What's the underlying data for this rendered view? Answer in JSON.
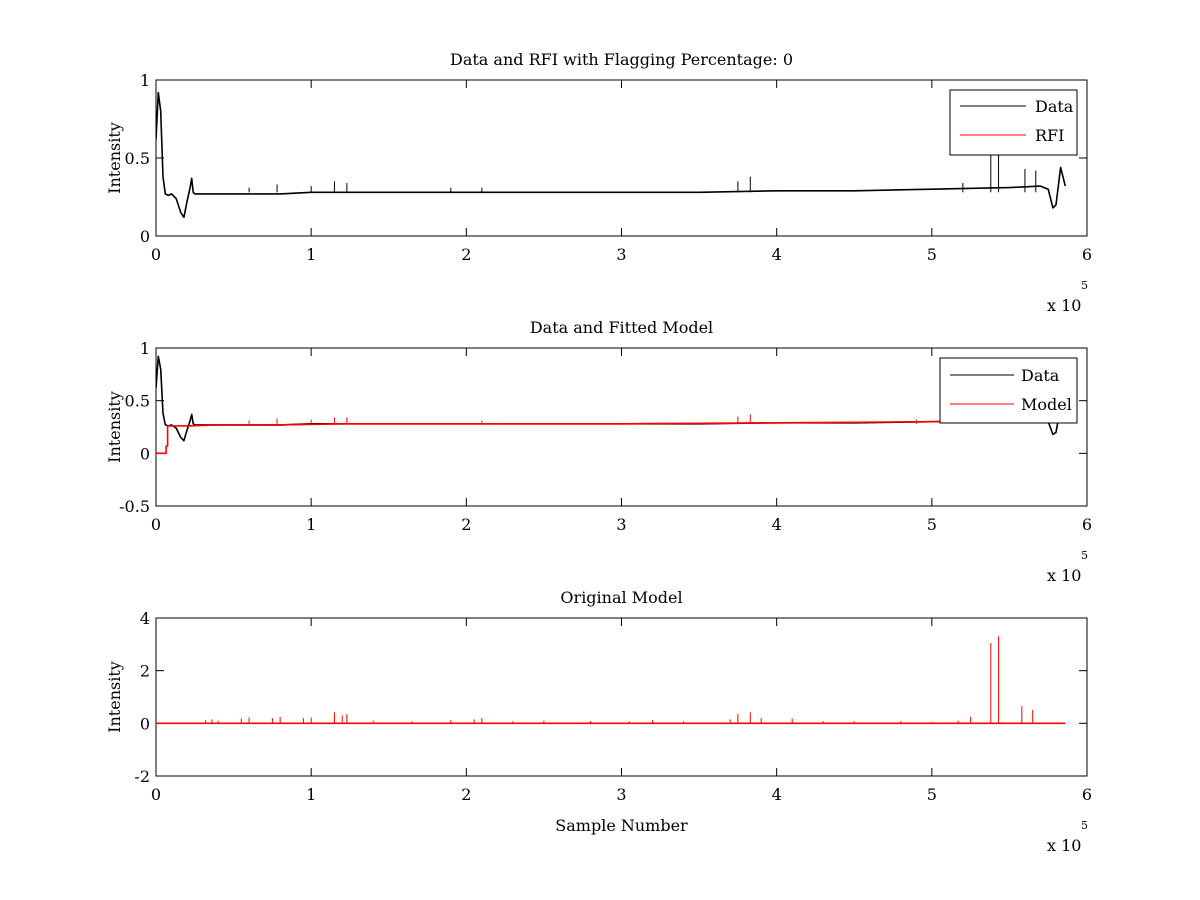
{
  "figure": {
    "background": "#ffffff",
    "data_color": "#000000",
    "rfi_color": "#ff0000"
  },
  "chart_data": [
    {
      "type": "line",
      "title": "Data and RFI with Flagging Percentage: 0",
      "xlabel": "",
      "ylabel": "Intensity",
      "xlim": [
        0,
        600000
      ],
      "ylim": [
        0,
        1
      ],
      "xticks": [
        0,
        1,
        2,
        3,
        4,
        5,
        6
      ],
      "xtick_labels": [
        "0",
        "1",
        "2",
        "3",
        "4",
        "5",
        "6"
      ],
      "yticks": [
        0,
        0.5,
        1
      ],
      "ytick_labels": [
        "0",
        "0.5",
        "1"
      ],
      "x_multiplier": {
        "base": "x 10",
        "exponent": "5"
      },
      "grid": false,
      "legend": {
        "position": "top-right",
        "entries": [
          "Data",
          "RFI"
        ]
      },
      "series": [
        {
          "name": "Data",
          "color": "#000000",
          "x": [
            0,
            1500,
            3000,
            4500,
            6000,
            8000,
            10000,
            13000,
            16000,
            18000,
            20000,
            22000,
            23000,
            24000,
            25000,
            30000,
            40000,
            60000,
            80000,
            100000,
            120000,
            150000,
            200000,
            250000,
            300000,
            350000,
            400000,
            450000,
            500000,
            550000,
            570000,
            575000,
            578000,
            580000,
            583000,
            586000
          ],
          "y": [
            0.62,
            0.92,
            0.8,
            0.38,
            0.27,
            0.26,
            0.27,
            0.24,
            0.15,
            0.12,
            0.22,
            0.31,
            0.37,
            0.28,
            0.27,
            0.27,
            0.27,
            0.27,
            0.27,
            0.28,
            0.28,
            0.28,
            0.28,
            0.28,
            0.28,
            0.28,
            0.29,
            0.29,
            0.3,
            0.31,
            0.32,
            0.3,
            0.18,
            0.2,
            0.44,
            0.32
          ]
        },
        {
          "name": "RFI",
          "color": "#ff0000",
          "x": [],
          "y": []
        }
      ],
      "spikes": [
        {
          "x": 60000,
          "y": 0.31
        },
        {
          "x": 78000,
          "y": 0.33
        },
        {
          "x": 100000,
          "y": 0.32
        },
        {
          "x": 115000,
          "y": 0.35
        },
        {
          "x": 123000,
          "y": 0.34
        },
        {
          "x": 190000,
          "y": 0.31
        },
        {
          "x": 210000,
          "y": 0.31
        },
        {
          "x": 375000,
          "y": 0.35
        },
        {
          "x": 383000,
          "y": 0.38
        },
        {
          "x": 520000,
          "y": 0.34
        },
        {
          "x": 538000,
          "y": 0.52
        },
        {
          "x": 543000,
          "y": 0.55
        },
        {
          "x": 560000,
          "y": 0.43
        },
        {
          "x": 567000,
          "y": 0.42
        }
      ]
    },
    {
      "type": "line",
      "title": "Data and Fitted Model",
      "xlabel": "",
      "ylabel": "Intensity",
      "xlim": [
        0,
        600000
      ],
      "ylim": [
        -0.5,
        1
      ],
      "xticks": [
        0,
        1,
        2,
        3,
        4,
        5,
        6
      ],
      "xtick_labels": [
        "0",
        "1",
        "2",
        "3",
        "4",
        "5",
        "6"
      ],
      "yticks": [
        -0.5,
        0,
        0.5,
        1
      ],
      "ytick_labels": [
        "-0.5",
        "0",
        "0.5",
        "1"
      ],
      "x_multiplier": {
        "base": "x 10",
        "exponent": "5"
      },
      "grid": false,
      "legend": {
        "position": "top-right",
        "entries": [
          "Data",
          "Model"
        ]
      },
      "series": [
        {
          "name": "Data",
          "color": "#000000",
          "x": [
            0,
            1500,
            3000,
            4500,
            6000,
            8000,
            10000,
            13000,
            16000,
            18000,
            20000,
            22000,
            23000,
            24000,
            25000,
            30000,
            40000,
            60000,
            80000,
            100000,
            120000,
            150000,
            200000,
            250000,
            300000,
            350000,
            400000,
            450000,
            500000,
            550000,
            570000,
            575000,
            578000,
            580000,
            583000,
            586000
          ],
          "y": [
            0.62,
            0.92,
            0.8,
            0.38,
            0.27,
            0.26,
            0.27,
            0.24,
            0.15,
            0.12,
            0.22,
            0.31,
            0.37,
            0.28,
            0.27,
            0.27,
            0.27,
            0.27,
            0.27,
            0.28,
            0.28,
            0.28,
            0.28,
            0.28,
            0.28,
            0.28,
            0.29,
            0.29,
            0.3,
            0.31,
            0.32,
            0.3,
            0.18,
            0.2,
            0.44,
            0.32
          ]
        },
        {
          "name": "Model",
          "color": "#ff0000",
          "x": [
            0,
            6500,
            6500,
            7500,
            7500,
            10000,
            20000,
            40000,
            80000,
            120000,
            200000,
            300000,
            400000,
            500000,
            560000
          ],
          "y": [
            0,
            0,
            0.07,
            0.07,
            0.26,
            0.26,
            0.26,
            0.27,
            0.27,
            0.28,
            0.28,
            0.28,
            0.29,
            0.3,
            0.3
          ]
        }
      ],
      "spikes": [
        {
          "x": 60000,
          "y": 0.31
        },
        {
          "x": 78000,
          "y": 0.33
        },
        {
          "x": 100000,
          "y": 0.32
        },
        {
          "x": 115000,
          "y": 0.34
        },
        {
          "x": 123000,
          "y": 0.34
        },
        {
          "x": 210000,
          "y": 0.31
        },
        {
          "x": 375000,
          "y": 0.35
        },
        {
          "x": 383000,
          "y": 0.37
        },
        {
          "x": 490000,
          "y": 0.32
        }
      ]
    },
    {
      "type": "line",
      "title": "Original Model",
      "xlabel": "Sample Number",
      "ylabel": "Intensity",
      "xlim": [
        0,
        600000
      ],
      "ylim": [
        -2,
        4
      ],
      "xticks": [
        0,
        1,
        2,
        3,
        4,
        5,
        6
      ],
      "xtick_labels": [
        "0",
        "1",
        "2",
        "3",
        "4",
        "5",
        "6"
      ],
      "yticks": [
        -2,
        0,
        2,
        4
      ],
      "ytick_labels": [
        "-2",
        "0",
        "2",
        "4"
      ],
      "x_multiplier": {
        "base": "x 10",
        "exponent": "5"
      },
      "grid": false,
      "legend": null,
      "series": [
        {
          "name": "",
          "color": "#ff0000",
          "x": [
            0,
            586000
          ],
          "y": [
            0,
            0
          ]
        }
      ],
      "spikes": [
        {
          "x": 32000,
          "y": 0.12
        },
        {
          "x": 36000,
          "y": 0.15
        },
        {
          "x": 40000,
          "y": 0.1
        },
        {
          "x": 55000,
          "y": 0.18
        },
        {
          "x": 60000,
          "y": 0.22
        },
        {
          "x": 75000,
          "y": 0.2
        },
        {
          "x": 80000,
          "y": 0.25
        },
        {
          "x": 95000,
          "y": 0.2
        },
        {
          "x": 100000,
          "y": 0.22
        },
        {
          "x": 115000,
          "y": 0.42
        },
        {
          "x": 120000,
          "y": 0.3
        },
        {
          "x": 123000,
          "y": 0.35
        },
        {
          "x": 140000,
          "y": 0.1
        },
        {
          "x": 165000,
          "y": 0.08
        },
        {
          "x": 190000,
          "y": 0.12
        },
        {
          "x": 205000,
          "y": 0.15
        },
        {
          "x": 210000,
          "y": 0.2
        },
        {
          "x": 230000,
          "y": 0.08
        },
        {
          "x": 250000,
          "y": 0.1
        },
        {
          "x": 280000,
          "y": 0.08
        },
        {
          "x": 305000,
          "y": 0.08
        },
        {
          "x": 320000,
          "y": 0.12
        },
        {
          "x": 340000,
          "y": 0.08
        },
        {
          "x": 370000,
          "y": 0.15
        },
        {
          "x": 375000,
          "y": 0.35
        },
        {
          "x": 383000,
          "y": 0.42
        },
        {
          "x": 390000,
          "y": 0.2
        },
        {
          "x": 410000,
          "y": 0.18
        },
        {
          "x": 430000,
          "y": 0.08
        },
        {
          "x": 450000,
          "y": 0.08
        },
        {
          "x": 480000,
          "y": 0.08
        },
        {
          "x": 500000,
          "y": 0.06
        },
        {
          "x": 517000,
          "y": 0.1
        },
        {
          "x": 525000,
          "y": 0.25
        },
        {
          "x": 538000,
          "y": 3.05
        },
        {
          "x": 543000,
          "y": 3.3
        },
        {
          "x": 558000,
          "y": 0.65
        },
        {
          "x": 565000,
          "y": 0.5
        }
      ]
    }
  ]
}
